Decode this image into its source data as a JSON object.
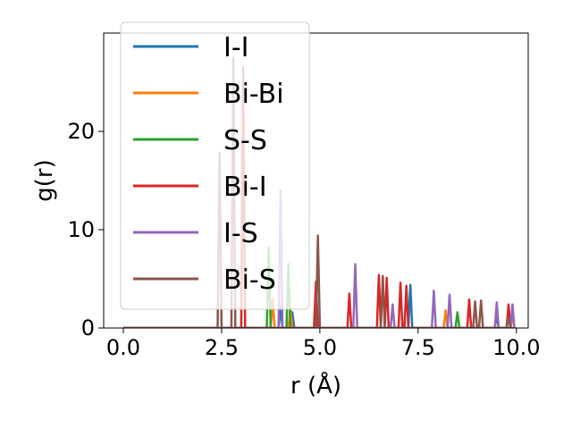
{
  "chart_data": {
    "type": "line",
    "title": "",
    "xlabel": "r (Å)",
    "ylabel": "g(r)",
    "xlim": [
      -0.5,
      10.3
    ],
    "ylim": [
      0,
      30
    ],
    "xticks": [
      0.0,
      2.5,
      5.0,
      7.5,
      10.0
    ],
    "xtick_labels": [
      "0.0",
      "2.5",
      "5.0",
      "7.5",
      "10.0"
    ],
    "yticks": [
      0,
      10,
      20
    ],
    "ytick_labels": [
      "0",
      "10",
      "20"
    ],
    "grid": false,
    "legend_position": "upper-left",
    "series": [
      {
        "name": "I-I",
        "color": "#1f77b4",
        "peaks": [
          [
            4.0,
            2.2
          ],
          [
            4.3,
            1.6
          ],
          [
            7.3,
            4.4
          ],
          [
            9.5,
            1.3
          ]
        ]
      },
      {
        "name": "Bi-Bi",
        "color": "#ff7f0e",
        "peaks": [
          [
            3.8,
            3.0
          ],
          [
            4.25,
            2.0
          ],
          [
            8.2,
            1.8
          ],
          [
            9.9,
            1.3
          ]
        ]
      },
      {
        "name": "S-S",
        "color": "#2ca02c",
        "peaks": [
          [
            3.7,
            8.2
          ],
          [
            4.2,
            6.5
          ],
          [
            8.5,
            1.6
          ]
        ]
      },
      {
        "name": "Bi-I",
        "color": "#d62728",
        "peaks": [
          [
            3.05,
            26.5
          ],
          [
            4.9,
            4.7
          ],
          [
            5.75,
            3.5
          ],
          [
            6.5,
            5.4
          ],
          [
            6.7,
            5.1
          ],
          [
            7.05,
            4.6
          ],
          [
            7.2,
            4.3
          ],
          [
            8.8,
            2.9
          ],
          [
            9.8,
            2.4
          ]
        ]
      },
      {
        "name": "I-S",
        "color": "#9467bd",
        "peaks": [
          [
            4.0,
            14.0
          ],
          [
            5.9,
            6.5
          ],
          [
            6.85,
            2.4
          ],
          [
            7.9,
            3.8
          ],
          [
            8.3,
            3.4
          ],
          [
            9.5,
            2.6
          ],
          [
            9.9,
            2.4
          ]
        ]
      },
      {
        "name": "Bi-S",
        "color": "#8c564b",
        "peaks": [
          [
            2.45,
            17.8
          ],
          [
            2.8,
            27.5
          ],
          [
            4.95,
            9.4
          ],
          [
            6.6,
            5.3
          ],
          [
            8.95,
            2.7
          ],
          [
            9.1,
            2.8
          ],
          [
            9.8,
            1.1
          ]
        ]
      }
    ]
  }
}
